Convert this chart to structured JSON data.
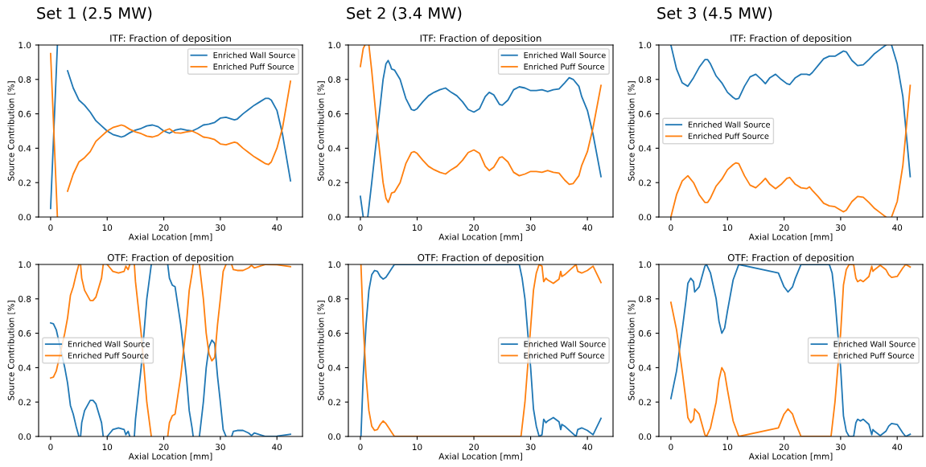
{
  "chart_data": [
    {
      "type": "line",
      "subtitle": "Set 1 (2.5 MW)",
      "title": "ITF: Fraction of deposition",
      "xlabel": "Axial Location [mm]",
      "ylabel": "Source Contribution [%]",
      "xlim": [
        -2.12,
        44.52
      ],
      "ylim": [
        0,
        1
      ],
      "xticks": [
        0,
        10,
        20,
        30,
        40
      ],
      "yticks": [
        {
          "value": 0,
          "label": "0.0"
        },
        {
          "value": 0.2,
          "label": "0.2"
        },
        {
          "value": 0.4,
          "label": "0.4"
        },
        {
          "value": 0.6,
          "label": "0.6"
        },
        {
          "value": 0.8,
          "label": "0.8"
        },
        {
          "value": 1,
          "label": "1.0"
        }
      ],
      "grid": false,
      "legend": "top right",
      "series": [
        {
          "name": "Enriched Wall Source",
          "color": "#1f77b4",
          "x": [
            0,
            1.2,
            2.5,
            3,
            4,
            5,
            6,
            7,
            8,
            9,
            10,
            11,
            12,
            12.5,
            13,
            14,
            15,
            16,
            17,
            18,
            19,
            20,
            21,
            22,
            23,
            24,
            25,
            26,
            27,
            28,
            29,
            30,
            31,
            32,
            32.5,
            33,
            34,
            35,
            36,
            37,
            38,
            38.5,
            39,
            40,
            41,
            42.4
          ],
          "values": [
            0.05,
            1.0,
            null,
            0.85,
            0.75,
            0.68,
            0.65,
            0.61,
            0.56,
            0.53,
            0.5,
            0.48,
            0.47,
            0.465,
            0.47,
            0.49,
            0.505,
            0.515,
            0.53,
            0.535,
            0.525,
            0.5,
            0.487,
            0.505,
            0.512,
            0.505,
            0.5,
            0.515,
            0.535,
            0.54,
            0.55,
            0.575,
            0.58,
            0.57,
            0.565,
            0.57,
            0.6,
            0.625,
            0.65,
            0.67,
            0.69,
            0.69,
            0.68,
            0.62,
            0.48,
            0.21
          ]
        },
        {
          "name": "Enriched Puff Source",
          "color": "#ff7f0e",
          "x": [
            0,
            1.2,
            2.5,
            3,
            4,
            5,
            6,
            7,
            8,
            9,
            10,
            11,
            12,
            12.5,
            13,
            14,
            15,
            16,
            17,
            18,
            19,
            20,
            21,
            22,
            23,
            24,
            25,
            26,
            27,
            28,
            29,
            30,
            31,
            32,
            32.5,
            33,
            34,
            35,
            36,
            37,
            38,
            38.5,
            39,
            40,
            41,
            42.4
          ],
          "values": [
            0.95,
            0.0,
            null,
            0.15,
            0.25,
            0.32,
            0.345,
            0.38,
            0.44,
            0.47,
            0.5,
            0.52,
            0.53,
            0.535,
            0.53,
            0.51,
            0.495,
            0.485,
            0.47,
            0.465,
            0.475,
            0.5,
            0.513,
            0.49,
            0.488,
            0.495,
            0.5,
            0.485,
            0.465,
            0.46,
            0.45,
            0.425,
            0.42,
            0.43,
            0.435,
            0.43,
            0.4,
            0.375,
            0.35,
            0.33,
            0.31,
            0.305,
            0.32,
            0.4,
            0.52,
            0.79
          ]
        }
      ]
    },
    {
      "type": "line",
      "subtitle": "Set 2 (3.4 MW)",
      "title": "ITF: Fraction of deposition",
      "xlabel": "Axial Location [mm]",
      "ylabel": "Source Contribution [%]",
      "xlim": [
        -2.12,
        44.52
      ],
      "ylim": [
        0,
        1
      ],
      "xticks": [
        0,
        10,
        20,
        30,
        40
      ],
      "yticks": [
        {
          "value": 0,
          "label": "0.0"
        },
        {
          "value": 0.2,
          "label": "0.2"
        },
        {
          "value": 0.4,
          "label": "0.4"
        },
        {
          "value": 0.6,
          "label": "0.6"
        },
        {
          "value": 0.8,
          "label": "0.8"
        },
        {
          "value": 1,
          "label": "1.0"
        }
      ],
      "grid": false,
      "legend": "top right",
      "series": [
        {
          "name": "Enriched Wall Source",
          "color": "#1f77b4",
          "x": [
            0,
            0.5,
            0.9,
            1.3,
            2,
            3,
            4,
            4.5,
            4.9,
            5.3,
            5.5,
            6,
            7,
            8,
            9,
            9.5,
            10,
            11,
            12,
            13,
            14,
            15,
            16,
            17,
            18,
            19,
            20,
            21,
            22,
            22.7,
            23.5,
            24.5,
            25,
            26,
            27,
            28,
            29,
            30,
            31,
            32,
            33,
            34,
            35,
            36,
            36.8,
            37.5,
            38.5,
            39,
            40,
            41,
            42.4
          ],
          "values": [
            0.12,
            0.0,
            null,
            0.0,
            0.2,
            0.5,
            0.8,
            0.89,
            0.91,
            0.88,
            0.86,
            0.855,
            0.8,
            0.69,
            0.625,
            0.62,
            0.63,
            0.67,
            0.705,
            0.725,
            0.74,
            0.75,
            0.725,
            0.705,
            0.67,
            0.625,
            0.61,
            0.63,
            0.7,
            0.725,
            0.71,
            0.655,
            0.65,
            0.68,
            0.74,
            0.757,
            0.75,
            0.735,
            0.735,
            0.74,
            0.73,
            0.74,
            0.745,
            0.78,
            0.81,
            0.8,
            0.76,
            0.7,
            0.62,
            0.48,
            0.235
          ]
        },
        {
          "name": "Enriched Puff Source",
          "color": "#ff7f0e",
          "x": [
            0,
            0.5,
            0.8,
            1.2,
            1.5,
            2,
            3,
            4,
            4.5,
            4.9,
            5.3,
            5.5,
            6,
            7,
            8,
            9,
            9.5,
            10,
            11,
            12,
            13,
            14,
            15,
            16,
            17,
            18,
            19,
            20,
            21,
            22,
            22.7,
            23.5,
            24.5,
            25,
            26,
            27,
            28,
            29,
            30,
            31,
            32,
            33,
            34,
            35,
            36,
            36.8,
            37.5,
            38.5,
            39,
            40,
            41,
            42.4
          ],
          "values": [
            0.875,
            0.98,
            1.0,
            null,
            1.0,
            0.85,
            0.5,
            0.2,
            0.11,
            0.085,
            0.12,
            0.14,
            0.145,
            0.2,
            0.31,
            0.375,
            0.38,
            0.37,
            0.33,
            0.295,
            0.275,
            0.26,
            0.25,
            0.275,
            0.295,
            0.33,
            0.375,
            0.39,
            0.37,
            0.295,
            0.27,
            0.29,
            0.345,
            0.35,
            0.32,
            0.26,
            0.24,
            0.25,
            0.265,
            0.265,
            0.26,
            0.27,
            0.26,
            0.255,
            0.215,
            0.19,
            0.195,
            0.24,
            0.3,
            0.38,
            0.52,
            0.765
          ]
        }
      ]
    },
    {
      "type": "line",
      "subtitle": "Set 3 (4.5 MW)",
      "title": "ITF: Fraction of deposition",
      "xlabel": "Axial Location [mm]",
      "ylabel": "Source Contribution [%]",
      "xlim": [
        -2.12,
        44.52
      ],
      "ylim": [
        0,
        1
      ],
      "xticks": [
        0,
        10,
        20,
        30,
        40
      ],
      "yticks": [
        {
          "value": 0,
          "label": "0.0"
        },
        {
          "value": 0.2,
          "label": "0.2"
        },
        {
          "value": 0.4,
          "label": "0.4"
        },
        {
          "value": 0.6,
          "label": "0.6"
        },
        {
          "value": 0.8,
          "label": "0.8"
        },
        {
          "value": 1,
          "label": "1.0"
        }
      ],
      "grid": false,
      "legend": "center left",
      "series": [
        {
          "name": "Enriched Wall Source",
          "color": "#1f77b4",
          "x": [
            0,
            1,
            2,
            3,
            4,
            5,
            6,
            6.5,
            7,
            8,
            9,
            10,
            11,
            11.5,
            12,
            13,
            14,
            15,
            16,
            16.7,
            17.5,
            18.5,
            19.5,
            20.5,
            21,
            22,
            23,
            24,
            24.5,
            25,
            26,
            27,
            28,
            29,
            30,
            30.5,
            31,
            32,
            33,
            34,
            35,
            36,
            37,
            38,
            38.5,
            39,
            40,
            41,
            41.5,
            42.3
          ],
          "values": [
            1.0,
            0.86,
            0.78,
            0.76,
            0.81,
            0.87,
            0.915,
            0.915,
            0.89,
            0.82,
            0.78,
            0.725,
            0.695,
            0.685,
            0.69,
            0.76,
            0.815,
            0.83,
            0.8,
            0.775,
            0.81,
            0.83,
            0.8,
            0.775,
            0.77,
            0.81,
            0.83,
            0.83,
            0.825,
            0.84,
            0.88,
            0.92,
            0.935,
            0.935,
            0.955,
            0.965,
            0.96,
            0.91,
            0.88,
            0.885,
            0.915,
            0.95,
            0.975,
            1.0,
            null,
            1.0,
            0.89,
            0.7,
            0.52,
            0.235
          ]
        },
        {
          "name": "Enriched Puff Source",
          "color": "#ff7f0e",
          "x": [
            0,
            1,
            2,
            3,
            4,
            5,
            6,
            6.5,
            7,
            8,
            9,
            10,
            11,
            11.5,
            12,
            13,
            14,
            15,
            16,
            16.7,
            17.5,
            18.5,
            19.5,
            20.5,
            21,
            22,
            23,
            24,
            24.5,
            25,
            26,
            27,
            28,
            29,
            30,
            30.5,
            31,
            32,
            33,
            34,
            35,
            36,
            37,
            38,
            38.5,
            39,
            40,
            41,
            41.5,
            42.3
          ],
          "values": [
            0.0,
            0.13,
            0.21,
            0.24,
            0.2,
            0.13,
            0.085,
            0.085,
            0.11,
            0.18,
            0.22,
            0.275,
            0.305,
            0.315,
            0.31,
            0.24,
            0.185,
            0.17,
            0.2,
            0.225,
            0.19,
            0.165,
            0.19,
            0.225,
            0.23,
            0.19,
            0.17,
            0.165,
            0.175,
            0.155,
            0.12,
            0.08,
            0.065,
            0.06,
            0.04,
            0.03,
            0.04,
            0.09,
            0.12,
            0.115,
            0.085,
            0.05,
            0.025,
            0.0,
            null,
            0.0,
            0.09,
            0.3,
            0.48,
            0.765
          ]
        }
      ]
    },
    {
      "type": "line",
      "title": "OTF: Fraction of deposition",
      "xlabel": "Axial Location [mm]",
      "ylabel": "Source Contribution [%]",
      "xlim": [
        -2.12,
        44.52
      ],
      "ylim": [
        0,
        1
      ],
      "xticks": [
        0,
        10,
        20,
        30,
        40
      ],
      "yticks": [
        {
          "value": 0,
          "label": "0.0"
        },
        {
          "value": 0.2,
          "label": "0.2"
        },
        {
          "value": 0.4,
          "label": "0.4"
        },
        {
          "value": 0.6,
          "label": "0.6"
        },
        {
          "value": 0.8,
          "label": "0.8"
        },
        {
          "value": 1,
          "label": "1.0"
        }
      ],
      "grid": false,
      "legend": "center left",
      "series": [
        {
          "name": "Enriched Wall Source",
          "color": "#1f77b4",
          "x": [
            0,
            0.5,
            1,
            2.5,
            3,
            3.5,
            4,
            4.5,
            5,
            5.15,
            5.3,
            5.5,
            6,
            7,
            7.5,
            8,
            9,
            9.3,
            9.65,
            10,
            10.5,
            11,
            12,
            13,
            13.3,
            13.7,
            14,
            14.4,
            14.8,
            15,
            16,
            17,
            17.8,
            19.2,
            20.7,
            21,
            21.5,
            22,
            23,
            24,
            24.5,
            25,
            25.2,
            25.7,
            26.3,
            27,
            27.5,
            28,
            28.5,
            29,
            29.5,
            30,
            30.5,
            31,
            31.5,
            32,
            32.3,
            33,
            34,
            35,
            35.5,
            36,
            37,
            38,
            40,
            42.4
          ],
          "values": [
            0.66,
            0.655,
            0.62,
            0.4,
            0.31,
            0.18,
            0.13,
            0.06,
            0.0,
            null,
            0.0,
            0.08,
            0.15,
            0.21,
            0.21,
            0.19,
            0.08,
            0.0,
            null,
            0.0,
            0.02,
            0.04,
            0.05,
            0.04,
            0.01,
            0.03,
            0.0,
            null,
            0.0,
            0.1,
            0.4,
            0.8,
            1.0,
            null,
            1.0,
            0.92,
            0.88,
            0.87,
            0.65,
            0.35,
            0.15,
            0.05,
            0.0,
            null,
            0.0,
            0.2,
            0.4,
            0.52,
            0.56,
            0.54,
            0.35,
            0.2,
            0.04,
            0.0,
            null,
            0.0,
            0.03,
            0.035,
            0.035,
            0.02,
            0.005,
            0.02,
            0.01,
            0.0,
            0.002,
            0.013
          ]
        },
        {
          "name": "Enriched Puff Source",
          "color": "#ff7f0e",
          "x": [
            0,
            0.5,
            1,
            2.5,
            3,
            3.5,
            4,
            4.5,
            5,
            5.15,
            5.3,
            5.5,
            6,
            7,
            7.5,
            8,
            9,
            9.3,
            9.65,
            10,
            10.5,
            11,
            12,
            13,
            13.3,
            13.7,
            14,
            14.4,
            14.8,
            15,
            16,
            17,
            17.8,
            19.2,
            20.7,
            21,
            21.5,
            22,
            23,
            24,
            24.5,
            25,
            25.2,
            25.7,
            26.3,
            27,
            27.5,
            28,
            28.5,
            29,
            29.5,
            30,
            30.5,
            31,
            31.5,
            32,
            32.3,
            33,
            34,
            35,
            35.5,
            36,
            37,
            38,
            40,
            42.4
          ],
          "values": [
            0.34,
            0.345,
            0.38,
            0.6,
            0.69,
            0.82,
            0.87,
            0.94,
            1.0,
            null,
            1.0,
            0.92,
            0.85,
            0.79,
            0.79,
            0.81,
            0.92,
            1.0,
            null,
            1.0,
            0.98,
            0.96,
            0.95,
            0.96,
            0.99,
            0.97,
            1.0,
            null,
            1.0,
            0.9,
            0.6,
            0.2,
            0.0,
            null,
            0.0,
            0.08,
            0.12,
            0.13,
            0.35,
            0.65,
            0.85,
            0.95,
            1.0,
            null,
            1.0,
            0.8,
            0.6,
            0.48,
            0.44,
            0.46,
            0.65,
            0.8,
            0.96,
            1.0,
            null,
            1.0,
            0.97,
            0.965,
            0.965,
            0.98,
            0.995,
            0.98,
            0.99,
            1.0,
            0.998,
            0.987
          ]
        }
      ]
    },
    {
      "type": "line",
      "title": "OTF: Fraction of deposition",
      "xlabel": "Axial Location [mm]",
      "ylabel": "Source Contribution [%]",
      "xlim": [
        -2.12,
        44.52
      ],
      "ylim": [
        0,
        1
      ],
      "xticks": [
        0,
        10,
        20,
        30,
        40
      ],
      "yticks": [
        {
          "value": 0,
          "label": "0.0"
        },
        {
          "value": 0.2,
          "label": "0.2"
        },
        {
          "value": 0.4,
          "label": "0.4"
        },
        {
          "value": 0.6,
          "label": "0.6"
        },
        {
          "value": 0.8,
          "label": "0.8"
        },
        {
          "value": 1,
          "label": "1.0"
        }
      ],
      "grid": false,
      "legend": "center right",
      "series": [
        {
          "name": "Enriched Wall Source",
          "color": "#1f77b4",
          "x": [
            0.1,
            0.5,
            1,
            1.5,
            2,
            2.5,
            3,
            3.5,
            4,
            4.5,
            5,
            5.5,
            6,
            8,
            27,
            28,
            28.5,
            29,
            29.5,
            30,
            30.5,
            31,
            31.5,
            32,
            32.3,
            32.7,
            33,
            34,
            35,
            35.3,
            35.5,
            36,
            37,
            38,
            38.3,
            39,
            40,
            41,
            42.4
          ],
          "values": [
            0.0,
            0.35,
            0.65,
            0.85,
            0.94,
            0.965,
            0.96,
            0.93,
            0.915,
            0.925,
            0.95,
            0.975,
            1.0,
            1.0,
            1.0,
            1.0,
            0.92,
            0.8,
            0.6,
            0.4,
            0.16,
            0.06,
            0.0,
            0.01,
            0.1,
            0.08,
            0.09,
            0.11,
            0.085,
            0.04,
            0.07,
            0.06,
            0.03,
            0.0,
            0.04,
            0.05,
            0.035,
            0.01,
            0.105
          ]
        },
        {
          "name": "Enriched Puff Source",
          "color": "#ff7f0e",
          "x": [
            0.1,
            0.5,
            1,
            1.5,
            2,
            2.5,
            3,
            3.5,
            4,
            4.5,
            5,
            5.5,
            6,
            8,
            27,
            28.3,
            29,
            30.5,
            31,
            31.5,
            32,
            32.3,
            32.7,
            33,
            34,
            35,
            35.3,
            35.5,
            36,
            37,
            38,
            38.3,
            39,
            40,
            41,
            42.4
          ],
          "values": [
            1.0,
            0.65,
            0.35,
            0.15,
            0.06,
            0.035,
            0.04,
            0.07,
            0.09,
            0.075,
            0.05,
            0.025,
            0.0,
            0.0,
            0.0,
            0.0,
            0.2,
            0.85,
            0.95,
            1.0,
            0.99,
            0.9,
            0.92,
            0.91,
            0.89,
            0.915,
            0.96,
            0.93,
            0.94,
            0.97,
            1.0,
            0.96,
            0.95,
            0.965,
            0.99,
            0.895
          ]
        }
      ]
    },
    {
      "type": "line",
      "title": "OTF: Fraction of deposition",
      "xlabel": "Axial Location [mm]",
      "ylabel": "Source Contribution [%]",
      "xlim": [
        -2.12,
        44.52
      ],
      "ylim": [
        0,
        1
      ],
      "xticks": [
        0,
        10,
        20,
        30,
        40
      ],
      "yticks": [
        {
          "value": 0,
          "label": "0.0"
        },
        {
          "value": 0.2,
          "label": "0.2"
        },
        {
          "value": 0.4,
          "label": "0.4"
        },
        {
          "value": 0.6,
          "label": "0.6"
        },
        {
          "value": 0.8,
          "label": "0.8"
        },
        {
          "value": 1,
          "label": "1.0"
        }
      ],
      "grid": false,
      "legend": "center right",
      "series": [
        {
          "name": "Enriched Wall Source",
          "color": "#1f77b4",
          "x": [
            0,
            1,
            2,
            2.7,
            3,
            3.5,
            4,
            4.2,
            5,
            6,
            6.3,
            7,
            8,
            8.5,
            9,
            9.5,
            10,
            11,
            12,
            19,
            20,
            20.7,
            21.5,
            22,
            23,
            28,
            28.5,
            29,
            29.5,
            30,
            30.5,
            31,
            31.5,
            32.3,
            32.7,
            33,
            33.5,
            34,
            35,
            35.5,
            35.7,
            36,
            37,
            38,
            38.5,
            39,
            40,
            41,
            41.5,
            42.3
          ],
          "values": [
            0.22,
            0.38,
            0.62,
            0.8,
            0.89,
            0.92,
            0.9,
            0.84,
            0.87,
            0.99,
            1.0,
            0.95,
            0.8,
            0.67,
            0.6,
            0.63,
            0.73,
            0.91,
            1.0,
            0.95,
            0.87,
            0.84,
            0.87,
            0.92,
            1.0,
            1.0,
            0.95,
            0.8,
            0.6,
            0.4,
            0.12,
            0.03,
            0.0,
            0.0,
            0.08,
            0.1,
            0.09,
            0.1,
            0.07,
            0.01,
            0.04,
            0.03,
            0.005,
            0.03,
            0.06,
            0.075,
            0.07,
            0.02,
            0.0,
            0.013
          ]
        },
        {
          "name": "Enriched Puff Source",
          "color": "#ff7f0e",
          "x": [
            0,
            1,
            2,
            2.7,
            3,
            3.5,
            4,
            4.2,
            5,
            6,
            6.3,
            7,
            8,
            8.5,
            9,
            9.5,
            10,
            11,
            12,
            19,
            20,
            20.7,
            21.5,
            22,
            23,
            28.3,
            29,
            29.5,
            30,
            30.5,
            31,
            31.5,
            32.3,
            32.7,
            33,
            33.5,
            34,
            35,
            35.5,
            35.7,
            36,
            37,
            38,
            38.5,
            39,
            40,
            41,
            41.5,
            42.3
          ],
          "values": [
            0.78,
            0.62,
            0.38,
            0.2,
            0.11,
            0.08,
            0.1,
            0.16,
            0.13,
            0.01,
            0.0,
            0.05,
            0.2,
            0.33,
            0.4,
            0.37,
            0.27,
            0.09,
            0.0,
            0.05,
            0.13,
            0.16,
            0.13,
            0.08,
            0.0,
            0.0,
            0.2,
            0.4,
            0.6,
            0.88,
            0.97,
            1.0,
            1.0,
            0.92,
            0.9,
            0.91,
            0.9,
            0.93,
            0.99,
            0.96,
            0.97,
            0.995,
            0.97,
            0.94,
            0.925,
            0.93,
            0.98,
            1.0,
            0.985
          ]
        }
      ]
    }
  ]
}
